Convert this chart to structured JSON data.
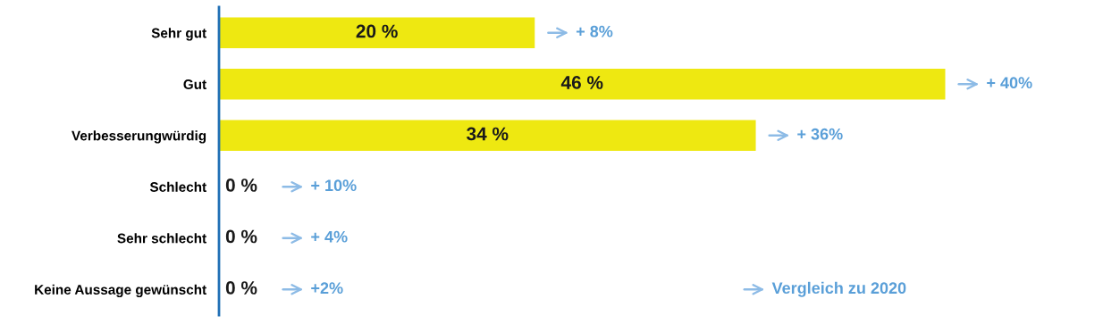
{
  "chart_data": {
    "type": "bar",
    "orientation": "horizontal",
    "categories": [
      "Sehr gut",
      "Gut",
      "Verbesserungwürdig",
      "Schlecht",
      "Sehr schlecht",
      "Keine Aussage gewünscht"
    ],
    "values": [
      20,
      46,
      34,
      0,
      0,
      0
    ],
    "value_labels": [
      "20 %",
      "46 %",
      "34 %",
      "0 %",
      "0 %",
      "0 %"
    ],
    "color": "#eee811",
    "tick_labels": "y",
    "grid": false,
    "annotations": [
      "+ 8%",
      "+ 40%",
      "+ 36%",
      "+ 10%",
      "+ 4%",
      "+2%",
      "Vergleich zu 2020"
    ]
  }
}
